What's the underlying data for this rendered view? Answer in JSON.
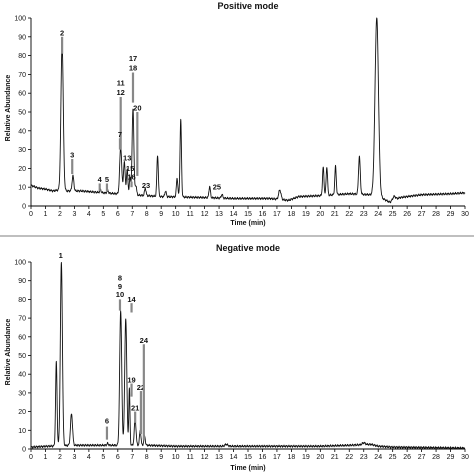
{
  "chart_data": [
    {
      "type": "line",
      "title": "Positive mode",
      "xlabel": "Time (min)",
      "ylabel": "Relative Abundance",
      "xlim": [
        0,
        30
      ],
      "ylim": [
        0,
        100
      ],
      "xticks": [
        "0",
        "1",
        "2",
        "3",
        "4",
        "5",
        "6",
        "7",
        "8",
        "9",
        "10",
        "11",
        "12",
        "13",
        "14",
        "15",
        "16",
        "17",
        "18",
        "19",
        "20",
        "21",
        "22",
        "23",
        "24",
        "25",
        "26",
        "27",
        "28",
        "29",
        "30"
      ],
      "yticks": [
        "0",
        "10",
        "20",
        "30",
        "40",
        "50",
        "60",
        "70",
        "80",
        "90",
        "100"
      ],
      "baseline": [
        [
          0,
          11
        ],
        [
          0.5,
          9.5
        ],
        [
          1.0,
          9
        ],
        [
          1.5,
          8
        ],
        [
          1.9,
          8.5
        ],
        [
          2.5,
          8
        ],
        [
          3.5,
          8
        ],
        [
          5,
          7
        ],
        [
          6,
          6.5
        ],
        [
          7,
          6
        ],
        [
          9,
          5
        ],
        [
          12,
          4.5
        ],
        [
          14,
          4
        ],
        [
          16.5,
          4
        ],
        [
          17.2,
          3.5
        ],
        [
          17.8,
          3
        ],
        [
          18.5,
          5
        ],
        [
          20,
          5.5
        ],
        [
          22,
          6.5
        ],
        [
          23.5,
          6
        ],
        [
          24.3,
          4
        ],
        [
          24.8,
          2
        ],
        [
          25.5,
          4.5
        ],
        [
          27,
          6
        ],
        [
          29,
          6.5
        ],
        [
          30,
          7
        ]
      ],
      "peaks": [
        {
          "rt": 2.15,
          "h": 78,
          "w": 0.08
        },
        {
          "rt": 2.9,
          "h": 8,
          "w": 0.06
        },
        {
          "rt": 4.8,
          "h": 1.5,
          "w": 0.05
        },
        {
          "rt": 5.3,
          "h": 1.5,
          "w": 0.05
        },
        {
          "rt": 6.2,
          "h": 25,
          "w": 0.07
        },
        {
          "rt": 6.45,
          "h": 17,
          "w": 0.06
        },
        {
          "rt": 6.65,
          "h": 13,
          "w": 0.05
        },
        {
          "rt": 6.85,
          "h": 9,
          "w": 0.05
        },
        {
          "rt": 7.05,
          "h": 46,
          "w": 0.06
        },
        {
          "rt": 7.25,
          "h": 5,
          "w": 0.05
        },
        {
          "rt": 7.9,
          "h": 4,
          "w": 0.05
        },
        {
          "rt": 8.75,
          "h": 22,
          "w": 0.05
        },
        {
          "rt": 9.3,
          "h": 3,
          "w": 0.05
        },
        {
          "rt": 10.1,
          "h": 10,
          "w": 0.05
        },
        {
          "rt": 10.35,
          "h": 41,
          "w": 0.05
        },
        {
          "rt": 12.35,
          "h": 6,
          "w": 0.05
        },
        {
          "rt": 13.2,
          "h": 2,
          "w": 0.05
        },
        {
          "rt": 17.2,
          "h": 5,
          "w": 0.08
        },
        {
          "rt": 20.2,
          "h": 15,
          "w": 0.05
        },
        {
          "rt": 20.45,
          "h": 15,
          "w": 0.05
        },
        {
          "rt": 21.05,
          "h": 15,
          "w": 0.05
        },
        {
          "rt": 22.7,
          "h": 20,
          "w": 0.06
        },
        {
          "rt": 23.9,
          "h": 95,
          "w": 0.12
        },
        {
          "rt": 25.1,
          "h": 2,
          "w": 0.1
        }
      ],
      "labels": [
        {
          "text": "2",
          "x": 2.15,
          "y": 92,
          "arrow": [
            90,
            81
          ]
        },
        {
          "text": "3",
          "x": 2.85,
          "y": 27,
          "arrow": [
            25,
            17
          ]
        },
        {
          "text": "4",
          "x": 4.75,
          "y": 14,
          "arrow": [
            12,
            8
          ]
        },
        {
          "text": "5",
          "x": 5.25,
          "y": 14,
          "arrow": [
            12,
            8
          ]
        },
        {
          "text": "11",
          "x": 6.2,
          "y": 65.5,
          "arrow": null
        },
        {
          "text": "12",
          "x": 6.2,
          "y": 60.5,
          "arrow": [
            58,
            30
          ]
        },
        {
          "text": "7",
          "x": 6.15,
          "y": 38,
          "arrow": [
            36,
            30
          ]
        },
        {
          "text": "13",
          "x": 6.65,
          "y": 25.5,
          "arrow": null
        },
        {
          "text": "15",
          "x": 6.85,
          "y": 20,
          "arrow": null
        },
        {
          "text": "16",
          "x": 6.95,
          "y": 15.5,
          "arrow": [
            13,
            10
          ]
        },
        {
          "text": "17",
          "x": 7.05,
          "y": 78.5,
          "arrow": null
        },
        {
          "text": "18",
          "x": 7.05,
          "y": 73.5,
          "arrow": [
            71,
            55
          ]
        },
        {
          "text": "20",
          "x": 7.35,
          "y": 52,
          "arrow": [
            50,
            16
          ]
        },
        {
          "text": "23",
          "x": 7.95,
          "y": 11,
          "arrow": null
        },
        {
          "text": "25",
          "x": 12.85,
          "y": 10,
          "arrow": null
        }
      ]
    },
    {
      "type": "line",
      "title": "Negative mode",
      "xlabel": "Time (min)",
      "ylabel": "Relative Abundance",
      "xlim": [
        0,
        30
      ],
      "ylim": [
        0,
        100
      ],
      "xticks": [
        "0",
        "1",
        "2",
        "3",
        "4",
        "5",
        "6",
        "7",
        "8",
        "9",
        "10",
        "11",
        "12",
        "13",
        "14",
        "15",
        "16",
        "17",
        "18",
        "19",
        "20",
        "21",
        "22",
        "23",
        "24",
        "25",
        "26",
        "27",
        "28",
        "29",
        "30"
      ],
      "yticks": [
        "0",
        "10",
        "20",
        "30",
        "40",
        "50",
        "60",
        "70",
        "80",
        "90",
        "100"
      ],
      "baseline": [
        [
          0,
          1
        ],
        [
          1.2,
          1.5
        ],
        [
          3,
          2
        ],
        [
          6,
          2
        ],
        [
          8,
          2
        ],
        [
          10,
          1.5
        ],
        [
          16,
          1.5
        ],
        [
          20,
          1.5
        ],
        [
          22,
          2
        ],
        [
          23.5,
          2.5
        ],
        [
          24,
          1.5
        ],
        [
          25,
          1
        ],
        [
          30,
          0.5
        ]
      ],
      "peaks": [
        {
          "rt": 1.75,
          "h": 45,
          "w": 0.05
        },
        {
          "rt": 2.1,
          "h": 98,
          "w": 0.07
        },
        {
          "rt": 2.8,
          "h": 17,
          "w": 0.07
        },
        {
          "rt": 5.3,
          "h": 1,
          "w": 0.05
        },
        {
          "rt": 6.2,
          "h": 72,
          "w": 0.07
        },
        {
          "rt": 6.55,
          "h": 68,
          "w": 0.07
        },
        {
          "rt": 6.8,
          "h": 30,
          "w": 0.04
        },
        {
          "rt": 7.2,
          "h": 14,
          "w": 0.06
        },
        {
          "rt": 7.55,
          "h": 8,
          "w": 0.05
        },
        {
          "rt": 7.85,
          "h": 5,
          "w": 0.05
        },
        {
          "rt": 13.5,
          "h": 1,
          "w": 0.1
        },
        {
          "rt": 23.0,
          "h": 1,
          "w": 0.1
        }
      ],
      "labels": [
        {
          "text": "1",
          "x": 2.05,
          "y": 103.5,
          "arrow": null
        },
        {
          "text": "6",
          "x": 5.25,
          "y": 15,
          "arrow": [
            12,
            5
          ]
        },
        {
          "text": "8",
          "x": 6.15,
          "y": 91.5,
          "arrow": null
        },
        {
          "text": "9",
          "x": 6.15,
          "y": 87,
          "arrow": null
        },
        {
          "text": "10",
          "x": 6.15,
          "y": 82.5,
          "arrow": [
            80,
            74
          ]
        },
        {
          "text": "14",
          "x": 6.95,
          "y": 80,
          "arrow": [
            78,
            73
          ]
        },
        {
          "text": "19",
          "x": 6.95,
          "y": 37,
          "arrow": [
            35,
            28
          ]
        },
        {
          "text": "21",
          "x": 7.2,
          "y": 22,
          "arrow": [
            20,
            14
          ]
        },
        {
          "text": "22",
          "x": 7.6,
          "y": 33,
          "arrow": [
            31,
            8
          ]
        },
        {
          "text": "24",
          "x": 7.8,
          "y": 58,
          "arrow": [
            56,
            5
          ]
        }
      ]
    }
  ]
}
